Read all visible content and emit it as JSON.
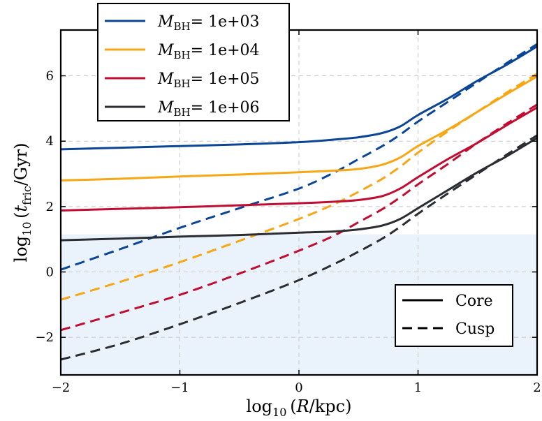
{
  "chart_data": {
    "type": "line",
    "xlabel": "log10 (R/kpc)",
    "ylabel": "log10 (t_fric/Gyr)",
    "xlim": [
      -2,
      2
    ],
    "ylim": [
      -3.15,
      7.4
    ],
    "xticks": [
      -2,
      -1,
      0,
      1,
      2
    ],
    "yticks": [
      -2,
      0,
      2,
      4,
      6
    ],
    "xtick_labels": [
      "−2",
      "−1",
      "0",
      "1",
      "2"
    ],
    "ytick_labels": [
      "−2",
      "0",
      "2",
      "4",
      "6"
    ],
    "grid": true,
    "shaded_region": {
      "y_from": -3.15,
      "y_to": 1.15,
      "color": "#eaf3fc"
    },
    "legend_series_placement": "top-left",
    "legend_profile_placement": "lower-right",
    "legend_symbol": "M",
    "legend_subscript": "BH",
    "profiles": [
      {
        "name": "Core",
        "dash": "solid"
      },
      {
        "name": "Cusp",
        "dash": "dashed"
      }
    ],
    "x": [
      -2,
      -1.5,
      -1,
      -0.5,
      0,
      0.3,
      0.5,
      0.7,
      0.85,
      1,
      1.25,
      1.5,
      1.75,
      2
    ],
    "series": [
      {
        "name": "1e+03",
        "legend_label": "= 1e+03",
        "color": "#0b4596",
        "core": [
          3.75,
          3.8,
          3.85,
          3.9,
          3.97,
          4.05,
          4.12,
          4.25,
          4.45,
          4.8,
          5.3,
          5.85,
          6.35,
          6.9
        ],
        "cusp": [
          0.07,
          0.7,
          1.35,
          1.95,
          2.55,
          3.05,
          3.45,
          3.85,
          4.2,
          4.6,
          5.2,
          5.8,
          6.4,
          6.97
        ]
      },
      {
        "name": "1e+04",
        "legend_label": "= 1e+04",
        "color": "#f7a614",
        "core": [
          2.8,
          2.85,
          2.92,
          2.98,
          3.05,
          3.1,
          3.15,
          3.28,
          3.5,
          3.85,
          4.35,
          4.9,
          5.45,
          5.98
        ],
        "cusp": [
          -0.85,
          -0.3,
          0.3,
          0.95,
          1.62,
          2.08,
          2.45,
          2.85,
          3.22,
          3.65,
          4.3,
          4.9,
          5.5,
          6.06
        ]
      },
      {
        "name": "1e+05",
        "legend_label": "= 1e+05",
        "color": "#c10d32",
        "core": [
          1.88,
          1.93,
          1.98,
          2.04,
          2.1,
          2.15,
          2.2,
          2.32,
          2.55,
          2.9,
          3.45,
          3.95,
          4.5,
          5.03
        ],
        "cusp": [
          -1.78,
          -1.25,
          -0.7,
          -0.05,
          0.65,
          1.12,
          1.52,
          1.92,
          2.28,
          2.68,
          3.3,
          3.95,
          4.55,
          5.12
        ]
      },
      {
        "name": "1e+06",
        "legend_label": "= 1e+06",
        "color": "#2b2d33",
        "core": [
          0.97,
          1.02,
          1.08,
          1.13,
          1.2,
          1.24,
          1.3,
          1.42,
          1.62,
          1.95,
          2.5,
          3.05,
          3.55,
          4.1
        ],
        "cusp": [
          -2.68,
          -2.2,
          -1.6,
          -0.95,
          -0.25,
          0.25,
          0.62,
          1.02,
          1.38,
          1.78,
          2.4,
          3.0,
          3.6,
          4.18
        ]
      }
    ]
  }
}
